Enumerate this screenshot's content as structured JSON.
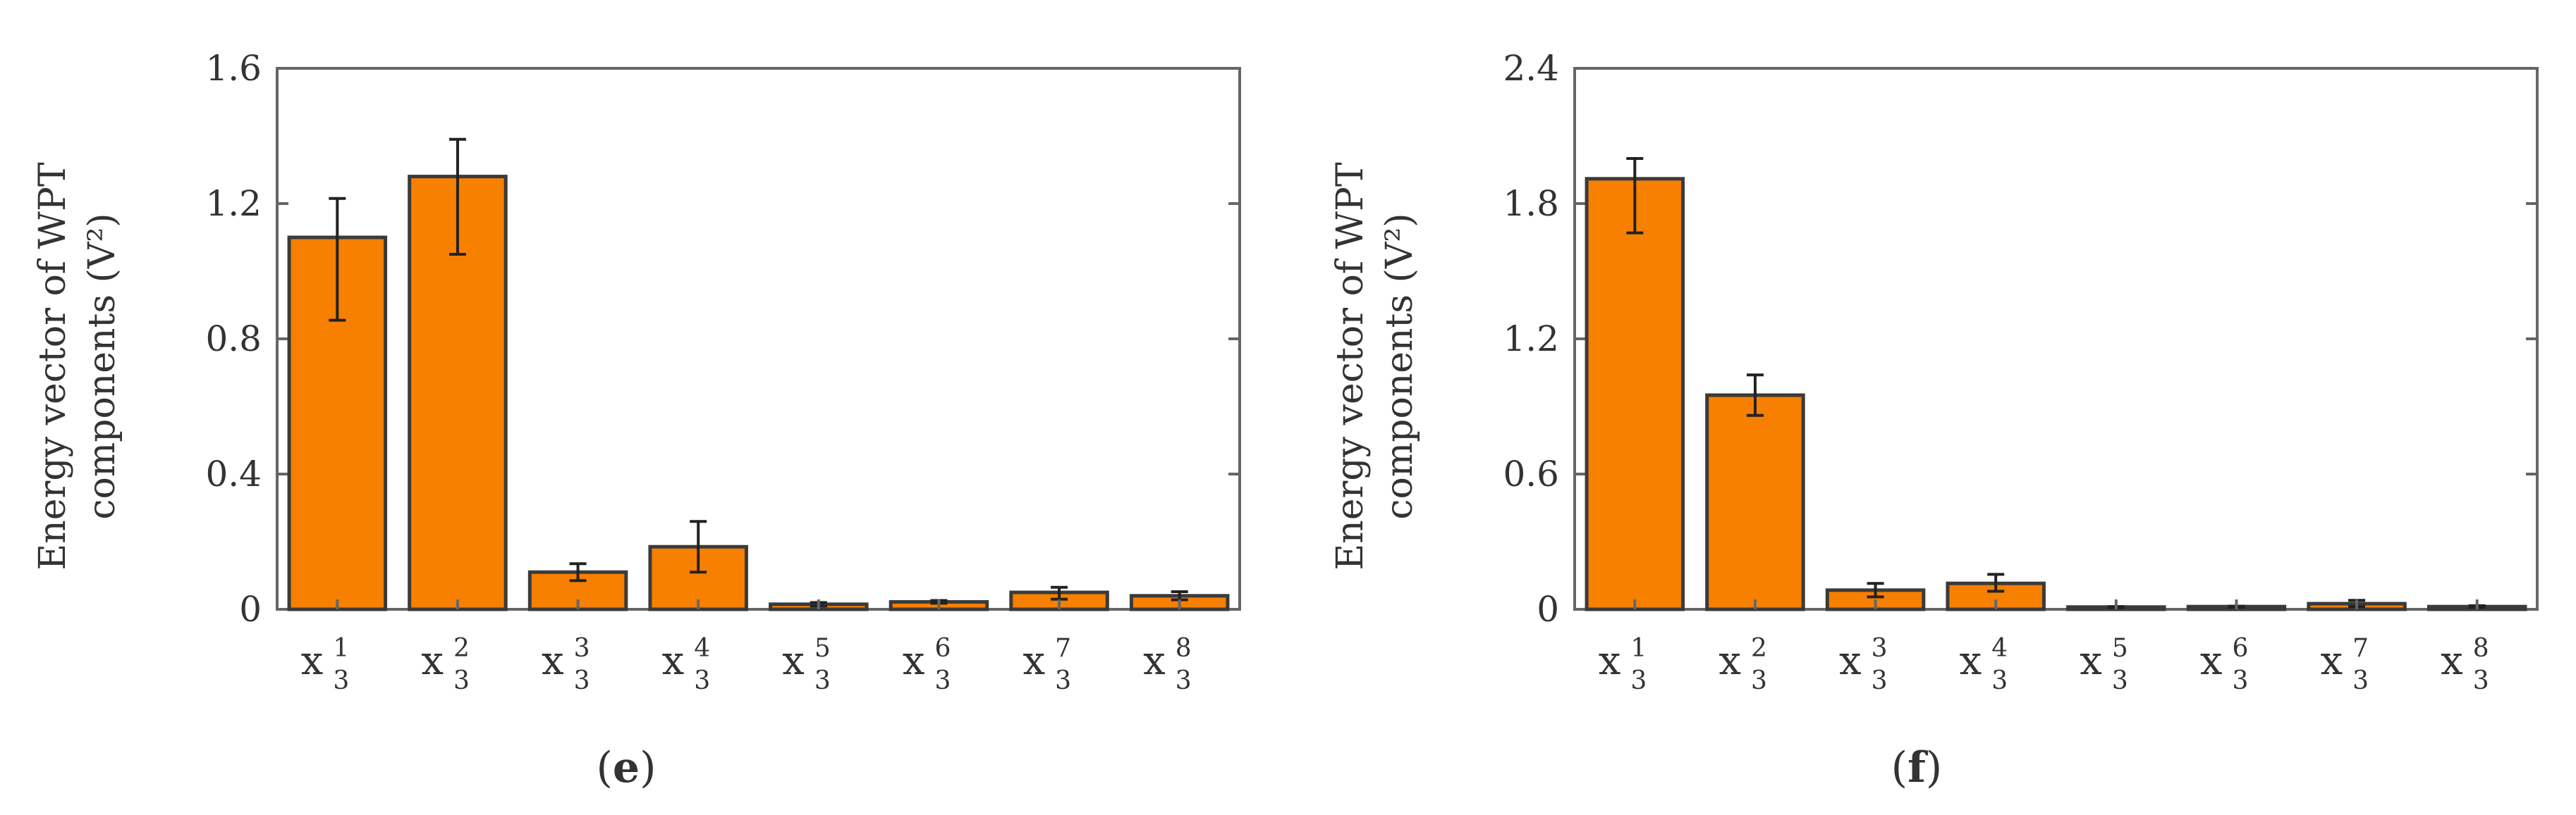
{
  "colors": {
    "bar_fill": "#F78000",
    "bar_stroke": "#3A3A3A",
    "axis": "#666666",
    "text": "#333333"
  },
  "chart_data": [
    {
      "type": "bar",
      "panel_label": "(e)",
      "panel_letter": "e",
      "ylabel_lines": [
        "Energy vector of WPT",
        "components (V²)"
      ],
      "ylim": [
        0,
        1.6
      ],
      "yticks": [
        "0",
        "0.4",
        "0.8",
        "1.2",
        "1.6"
      ],
      "ytick_values": [
        0,
        0.4,
        0.8,
        1.2,
        1.6
      ],
      "categories": [
        {
          "symbol": "x",
          "sup": "1",
          "sub": "3"
        },
        {
          "symbol": "x",
          "sup": "2",
          "sub": "3"
        },
        {
          "symbol": "x",
          "sup": "3",
          "sub": "3"
        },
        {
          "symbol": "x",
          "sup": "4",
          "sub": "3"
        },
        {
          "symbol": "x",
          "sup": "5",
          "sub": "3"
        },
        {
          "symbol": "x",
          "sup": "6",
          "sub": "3"
        },
        {
          "symbol": "x",
          "sup": "7",
          "sub": "3"
        },
        {
          "symbol": "x",
          "sup": "8",
          "sub": "3"
        }
      ],
      "values": [
        1.1,
        1.28,
        0.11,
        0.185,
        0.015,
        0.022,
        0.05,
        0.04
      ],
      "error_low": [
        0.855,
        1.05,
        0.085,
        0.11,
        0.01,
        0.018,
        0.03,
        0.028
      ],
      "error_high": [
        1.215,
        1.39,
        0.135,
        0.26,
        0.02,
        0.026,
        0.065,
        0.052
      ],
      "grid": false,
      "legend": "none"
    },
    {
      "type": "bar",
      "panel_label": "(f)",
      "panel_letter": "f",
      "ylabel_lines": [
        "Energy vector of WPT",
        "components (V²)"
      ],
      "ylim": [
        0,
        2.4
      ],
      "yticks": [
        "0",
        "0.6",
        "1.2",
        "1.8",
        "2.4"
      ],
      "ytick_values": [
        0,
        0.6,
        1.2,
        1.8,
        2.4
      ],
      "categories": [
        {
          "symbol": "x",
          "sup": "1",
          "sub": "3"
        },
        {
          "symbol": "x",
          "sup": "2",
          "sub": "3"
        },
        {
          "symbol": "x",
          "sup": "3",
          "sub": "3"
        },
        {
          "symbol": "x",
          "sup": "4",
          "sub": "3"
        },
        {
          "symbol": "x",
          "sup": "5",
          "sub": "3"
        },
        {
          "symbol": "x",
          "sup": "6",
          "sub": "3"
        },
        {
          "symbol": "x",
          "sup": "7",
          "sub": "3"
        },
        {
          "symbol": "x",
          "sup": "8",
          "sub": "3"
        }
      ],
      "values": [
        1.91,
        0.95,
        0.085,
        0.115,
        0.01,
        0.012,
        0.025,
        0.012
      ],
      "error_low": [
        1.67,
        0.86,
        0.055,
        0.08,
        0.008,
        0.01,
        0.012,
        0.009
      ],
      "error_high": [
        2.0,
        1.04,
        0.115,
        0.155,
        0.012,
        0.014,
        0.04,
        0.016
      ],
      "grid": false,
      "legend": "none"
    }
  ]
}
